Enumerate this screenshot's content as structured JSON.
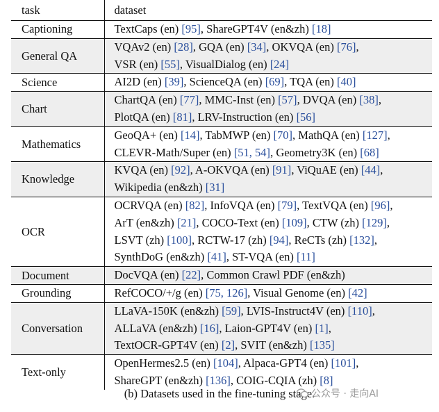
{
  "table": {
    "headers": {
      "task": "task",
      "dataset": "dataset"
    },
    "rows": [
      {
        "task": "Captioning",
        "shade": false,
        "lines": [
          [
            [
              "TextCaps (en) ",
              false
            ],
            [
              "[95]",
              true
            ],
            [
              ", ShareGPT4V (en&zh) ",
              false
            ],
            [
              "[18]",
              true
            ]
          ]
        ]
      },
      {
        "task": "General QA",
        "shade": true,
        "lines": [
          [
            [
              "VQAv2 (en) ",
              false
            ],
            [
              "[28]",
              true
            ],
            [
              ", GQA (en) ",
              false
            ],
            [
              "[34]",
              true
            ],
            [
              ", OKVQA (en) ",
              false
            ],
            [
              "[76]",
              true
            ],
            [
              ",",
              false
            ]
          ],
          [
            [
              "VSR (en) ",
              false
            ],
            [
              "[55]",
              true
            ],
            [
              ", VisualDialog (en) ",
              false
            ],
            [
              "[24]",
              true
            ]
          ]
        ]
      },
      {
        "task": "Science",
        "shade": false,
        "lines": [
          [
            [
              "AI2D (en) ",
              false
            ],
            [
              "[39]",
              true
            ],
            [
              ", ScienceQA (en) ",
              false
            ],
            [
              "[69]",
              true
            ],
            [
              ", TQA (en) ",
              false
            ],
            [
              "[40]",
              true
            ]
          ]
        ]
      },
      {
        "task": "Chart",
        "shade": true,
        "lines": [
          [
            [
              "ChartQA (en) ",
              false
            ],
            [
              "[77]",
              true
            ],
            [
              ", MMC-Inst (en) ",
              false
            ],
            [
              "[57]",
              true
            ],
            [
              ", DVQA (en) ",
              false
            ],
            [
              "[38]",
              true
            ],
            [
              ",",
              false
            ]
          ],
          [
            [
              "PlotQA (en) ",
              false
            ],
            [
              "[81]",
              true
            ],
            [
              ", LRV-Instruction (en) ",
              false
            ],
            [
              "[56]",
              true
            ]
          ]
        ]
      },
      {
        "task": "Mathematics",
        "shade": false,
        "lines": [
          [
            [
              "GeoQA+ (en) ",
              false
            ],
            [
              "[14]",
              true
            ],
            [
              ", TabMWP (en) ",
              false
            ],
            [
              "[70]",
              true
            ],
            [
              ", MathQA (en) ",
              false
            ],
            [
              "[127]",
              true
            ],
            [
              ",",
              false
            ]
          ],
          [
            [
              "CLEVR-Math/Super (en) ",
              false
            ],
            [
              "[51, 54]",
              true
            ],
            [
              ", Geometry3K (en) ",
              false
            ],
            [
              "[68]",
              true
            ]
          ]
        ]
      },
      {
        "task": "Knowledge",
        "shade": true,
        "lines": [
          [
            [
              "KVQA (en) ",
              false
            ],
            [
              "[92]",
              true
            ],
            [
              ", A-OKVQA (en) ",
              false
            ],
            [
              "[91]",
              true
            ],
            [
              ", ViQuAE (en) ",
              false
            ],
            [
              "[44]",
              true
            ],
            [
              ",",
              false
            ]
          ],
          [
            [
              "Wikipedia (en&zh) ",
              false
            ],
            [
              "[31]",
              true
            ]
          ]
        ]
      },
      {
        "task": "OCR",
        "shade": false,
        "lines": [
          [
            [
              "OCRVQA (en) ",
              false
            ],
            [
              "[82]",
              true
            ],
            [
              ", InfoVQA (en) ",
              false
            ],
            [
              "[79]",
              true
            ],
            [
              ", TextVQA (en) ",
              false
            ],
            [
              "[96]",
              true
            ],
            [
              ",",
              false
            ]
          ],
          [
            [
              "ArT (en&zh) ",
              false
            ],
            [
              "[21]",
              true
            ],
            [
              ", COCO-Text (en) ",
              false
            ],
            [
              "[109]",
              true
            ],
            [
              ", CTW (zh) ",
              false
            ],
            [
              "[129]",
              true
            ],
            [
              ",",
              false
            ]
          ],
          [
            [
              "LSVT (zh) ",
              false
            ],
            [
              "[100]",
              true
            ],
            [
              ", RCTW-17 (zh) ",
              false
            ],
            [
              "[94]",
              true
            ],
            [
              ", ReCTs (zh) ",
              false
            ],
            [
              "[132]",
              true
            ],
            [
              ",",
              false
            ]
          ],
          [
            [
              "SynthDoG (en&zh) ",
              false
            ],
            [
              "[41]",
              true
            ],
            [
              ", ST-VQA (en) ",
              false
            ],
            [
              "[11]",
              true
            ]
          ]
        ]
      },
      {
        "task": "Document",
        "shade": true,
        "lines": [
          [
            [
              "DocVQA (en) ",
              false
            ],
            [
              "[22]",
              true
            ],
            [
              ", Common Crawl PDF (en&zh)",
              false
            ]
          ]
        ]
      },
      {
        "task": "Grounding",
        "shade": false,
        "lines": [
          [
            [
              "RefCOCO/+/g (en) ",
              false
            ],
            [
              "[75, 126]",
              true
            ],
            [
              ", Visual Genome (en) ",
              false
            ],
            [
              "[42]",
              true
            ]
          ]
        ]
      },
      {
        "task": "Conversation",
        "shade": true,
        "lines": [
          [
            [
              "LLaVA-150K (en&zh) ",
              false
            ],
            [
              "[59]",
              true
            ],
            [
              ", LVIS-Instruct4V (en) ",
              false
            ],
            [
              "[110]",
              true
            ],
            [
              ",",
              false
            ]
          ],
          [
            [
              "ALLaVA (en&zh) ",
              false
            ],
            [
              "[16]",
              true
            ],
            [
              ", Laion-GPT4V (en) ",
              false
            ],
            [
              "[1]",
              true
            ],
            [
              ",",
              false
            ]
          ],
          [
            [
              "TextOCR-GPT4V (en) ",
              false
            ],
            [
              "[2]",
              true
            ],
            [
              ", SVIT (en&zh) ",
              false
            ],
            [
              "[135]",
              true
            ]
          ]
        ]
      },
      {
        "task": "Text-only",
        "shade": false,
        "lines": [
          [
            [
              "OpenHermes2.5 (en) ",
              false
            ],
            [
              "[104]",
              true
            ],
            [
              ", Alpaca-GPT4 (en) ",
              false
            ],
            [
              "[101]",
              true
            ],
            [
              ",",
              false
            ]
          ],
          [
            [
              "ShareGPT (en&zh) ",
              false
            ],
            [
              "[136]",
              true
            ],
            [
              ", COIG-CQIA (zh) ",
              false
            ],
            [
              "[8]",
              true
            ]
          ]
        ]
      }
    ]
  },
  "caption": "(b) Datasets used in the fine-tuning stage.",
  "watermark": {
    "text": "公众号 · 走向AI",
    "icon": "wechat-logo-icon"
  },
  "colors": {
    "citation": "#2a4f9c",
    "shade": "#eeeeee"
  }
}
